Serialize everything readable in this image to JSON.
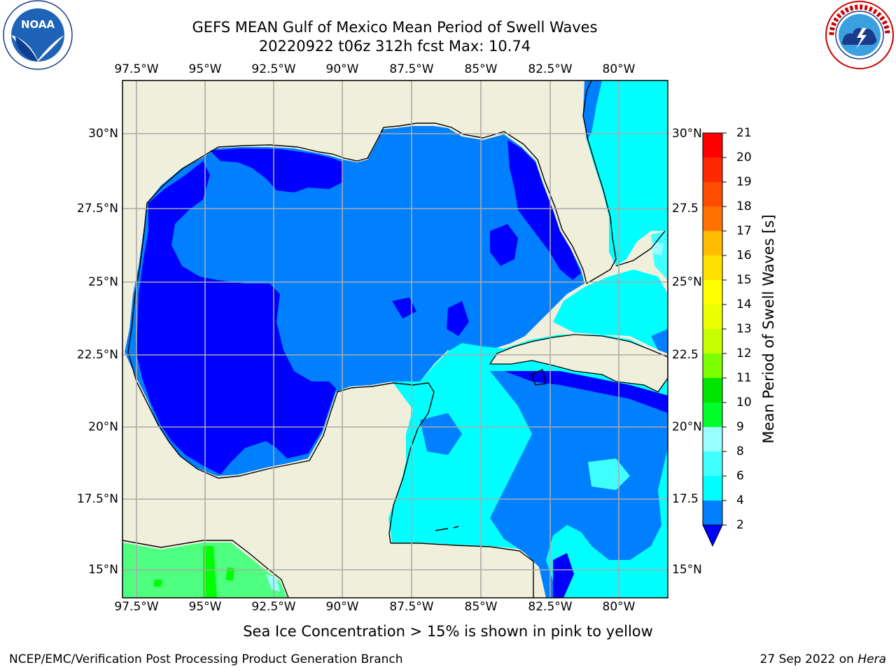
{
  "title": {
    "line1": "GEFS MEAN Gulf of Mexico Mean Period of Swell Waves",
    "line2": "20220922 t06z 312h fcst   Max: 10.74"
  },
  "logos": {
    "noaa": {
      "text": "NOAA",
      "ring_text": "NATIONAL OCEANIC AND ATMOSPHERIC ADMINISTRATION · U.S. DEPARTMENT OF COMMERCE"
    },
    "nws": {
      "ring_text": "NATIONAL WEATHER SERVICE"
    }
  },
  "map": {
    "lon_ticks": [
      "97.5°W",
      "95°W",
      "92.5°W",
      "90°W",
      "87.5°W",
      "85°W",
      "82.5°W",
      "80°W"
    ],
    "lat_ticks_left": [
      "30°N",
      "27.5°N",
      "25°N",
      "22.5°N",
      "20°N",
      "17.5°N",
      "15°N"
    ],
    "lat_ticks_right": [
      "30°N",
      "27.5",
      "25°N",
      "22.5",
      "20°N",
      "17.5",
      "15°N"
    ],
    "colors": {
      "land": "#efefdc",
      "ocean_2_4": "#0080ff",
      "ocean_deep": "#0000ff",
      "ocean_4_6": "#00ffff",
      "ocean_6_8": "#40ffff",
      "ocean_8_9": "#99ffff",
      "ocean_9_10": "#4fff80",
      "ocean_10_11": "#00ff00",
      "grid": "#aaaaaa",
      "coast": "#000000"
    }
  },
  "colorbar": {
    "label": "Mean Period of Swell Waves [s]",
    "ticks": [
      "21",
      "20",
      "19",
      "18",
      "17",
      "16",
      "15",
      "14",
      "13",
      "12",
      "11",
      "10",
      "9",
      "8",
      "6",
      "4",
      "2"
    ],
    "colors": [
      "#ff0000",
      "#ff2800",
      "#ff4d00",
      "#ff7200",
      "#ff9900",
      "#ffbb00",
      "#ffe100",
      "#ffff00",
      "#ecff00",
      "#c8ff00",
      "#7cff00",
      "#00e600",
      "#00ff2a",
      "#4fff80",
      "#99ffff",
      "#40ffff",
      "#00ffff",
      "#0080ff"
    ],
    "extend_color": "#0000ff"
  },
  "ice_note": "Sea Ice Concentration > 15% is shown in pink to yellow",
  "footer": {
    "left": "NCEP/EMC/Verification Post Processing Product Generation Branch",
    "right_date": "27 Sep 2022 on",
    "right_machine": "Hera"
  }
}
